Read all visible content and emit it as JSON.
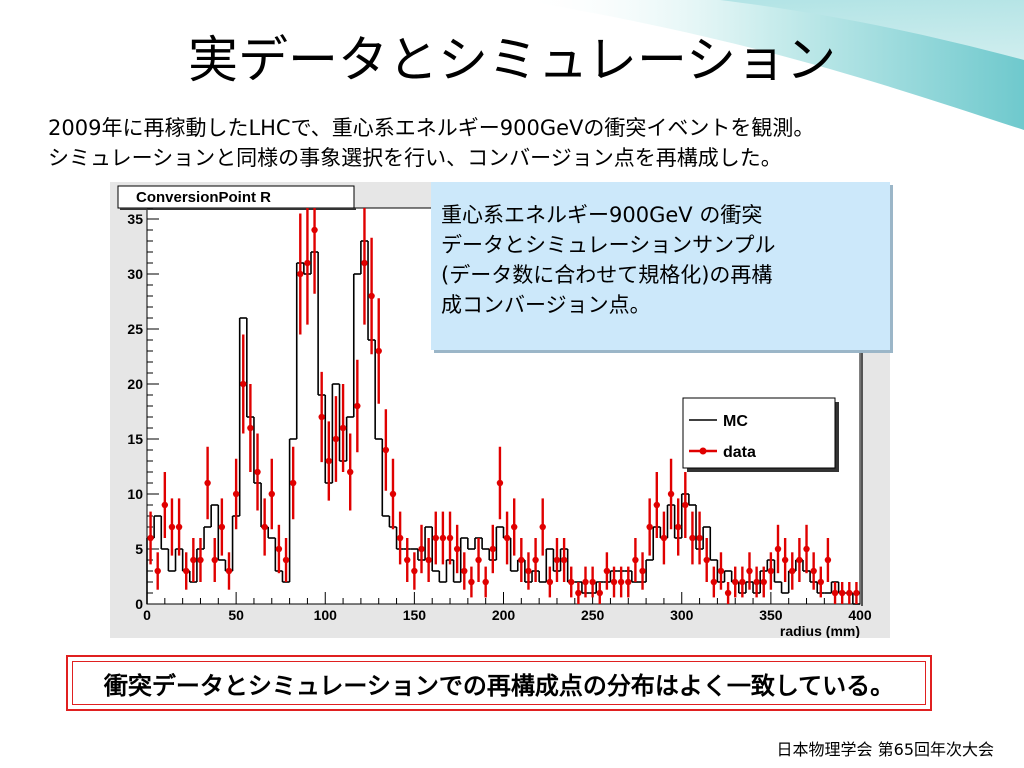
{
  "slide": {
    "title": "実データとシミュレーション",
    "intro_line1": "2009年に再稼動したLHCで、重心系エネルギー900GeVの衝突イベントを観測。",
    "intro_line2": "シミュレーションと同様の事象選択を行い、コンバージョン点を再構成した。",
    "callout_lines": [
      "重心系エネルギー900GeV の衝突",
      "データとシミュレーションサンプル",
      "(データ数に合わせて規格化)の再構",
      "成コンバージョン点。"
    ],
    "conclusion": "衝突データとシミュレーションでの再構成点の分布はよく一致している。",
    "footer": "日本物理学会 第65回年次大会"
  },
  "colors": {
    "data_marker": "#e00000",
    "mc_line": "#000000",
    "plot_frame_bg": "#e6e6e6",
    "callout_bg": "#cce8fa",
    "conclusion_border": "#e02020"
  },
  "chart_data": {
    "type": "line",
    "title": "ConversionPoint R",
    "xlabel": "radius (mm)",
    "ylabel": "",
    "xlim": [
      0,
      400
    ],
    "ylim": [
      0,
      36
    ],
    "xticks": [
      0,
      50,
      100,
      150,
      200,
      250,
      300,
      350,
      400
    ],
    "yticks": [
      0,
      5,
      10,
      15,
      20,
      25,
      30,
      35
    ],
    "bin_width": 4,
    "legend": [
      "MC",
      "data"
    ],
    "legend_position": "right",
    "series": [
      {
        "name": "MC",
        "style": "histogram",
        "x": [
          0,
          4,
          8,
          12,
          16,
          20,
          24,
          28,
          32,
          36,
          40,
          44,
          48,
          52,
          56,
          60,
          64,
          68,
          72,
          76,
          80,
          84,
          88,
          92,
          96,
          100,
          104,
          108,
          112,
          116,
          120,
          124,
          128,
          132,
          136,
          140,
          144,
          148,
          152,
          156,
          160,
          164,
          168,
          172,
          176,
          180,
          184,
          188,
          192,
          196,
          200,
          204,
          208,
          212,
          216,
          220,
          224,
          228,
          232,
          236,
          240,
          244,
          248,
          252,
          256,
          260,
          264,
          268,
          272,
          276,
          280,
          284,
          288,
          292,
          296,
          300,
          304,
          308,
          312,
          316,
          320,
          324,
          328,
          332,
          336,
          340,
          344,
          348,
          352,
          356,
          360,
          364,
          368,
          372,
          376,
          380,
          384,
          388,
          392,
          396
        ],
        "values": [
          6,
          8,
          5,
          3,
          5,
          3,
          2,
          5,
          7,
          9,
          4,
          3,
          8,
          26,
          17,
          11,
          7,
          6,
          3,
          2,
          15,
          31,
          30,
          32,
          19,
          11,
          20,
          13,
          17,
          30,
          33,
          24,
          15,
          8,
          7,
          5,
          5,
          5,
          4,
          7,
          3,
          2,
          4,
          2,
          6,
          5,
          6,
          5,
          4,
          7,
          6,
          3,
          4,
          2,
          3,
          2,
          5,
          3,
          5,
          2,
          2,
          1,
          1,
          2,
          2,
          3,
          3,
          3,
          2,
          2,
          4,
          7,
          6,
          9,
          6,
          10,
          9,
          5,
          7,
          4,
          2,
          3,
          2,
          1,
          2,
          1,
          3,
          4,
          2,
          1,
          3,
          4,
          3,
          2,
          1,
          1,
          2,
          1,
          1,
          0
        ]
      },
      {
        "name": "data",
        "style": "points",
        "x": [
          2,
          6,
          10,
          14,
          18,
          22,
          26,
          30,
          34,
          38,
          42,
          46,
          50,
          54,
          58,
          62,
          66,
          70,
          74,
          78,
          82,
          86,
          90,
          94,
          98,
          102,
          106,
          110,
          114,
          118,
          122,
          126,
          130,
          134,
          138,
          142,
          146,
          150,
          154,
          158,
          162,
          166,
          170,
          174,
          178,
          182,
          186,
          190,
          194,
          198,
          202,
          206,
          210,
          214,
          218,
          222,
          226,
          230,
          234,
          238,
          242,
          246,
          250,
          254,
          258,
          262,
          266,
          270,
          274,
          278,
          282,
          286,
          290,
          294,
          298,
          302,
          306,
          310,
          314,
          318,
          322,
          326,
          330,
          334,
          338,
          342,
          346,
          350,
          354,
          358,
          362,
          366,
          370,
          374,
          378,
          382,
          386,
          390,
          394,
          398
        ],
        "values": [
          6,
          3,
          9,
          7,
          7,
          3,
          4,
          4,
          11,
          4,
          7,
          3,
          10,
          20,
          16,
          12,
          7,
          10,
          5,
          4,
          11,
          30,
          31,
          34,
          17,
          13,
          15,
          16,
          12,
          18,
          31,
          28,
          23,
          14,
          10,
          6,
          4,
          3,
          5,
          4,
          6,
          6,
          6,
          5,
          3,
          2,
          4,
          2,
          5,
          11,
          6,
          7,
          4,
          3,
          4,
          7,
          2,
          4,
          4,
          2,
          1,
          2,
          2,
          1,
          3,
          2,
          2,
          2,
          4,
          3,
          7,
          9,
          6,
          10,
          7,
          9,
          6,
          6,
          4,
          2,
          3,
          1,
          2,
          2,
          3,
          2,
          2,
          3,
          5,
          4,
          3,
          4,
          5,
          3,
          2,
          4,
          1,
          1,
          1,
          1
        ],
        "errors": [
          2.4,
          1.7,
          3.0,
          2.6,
          2.6,
          1.7,
          2.0,
          2.0,
          3.3,
          2.0,
          2.6,
          1.7,
          3.2,
          4.5,
          4.0,
          3.5,
          2.6,
          3.2,
          2.2,
          2.0,
          3.3,
          5.5,
          5.6,
          5.8,
          4.1,
          3.6,
          3.9,
          4.0,
          3.5,
          4.2,
          5.6,
          5.3,
          4.8,
          3.7,
          3.2,
          2.4,
          2.0,
          1.7,
          2.2,
          2.0,
          2.4,
          2.4,
          2.4,
          2.2,
          1.7,
          1.4,
          2.0,
          1.4,
          2.2,
          3.3,
          2.4,
          2.6,
          2.0,
          1.7,
          2.0,
          2.6,
          1.4,
          2.0,
          2.0,
          1.4,
          1.0,
          1.4,
          1.4,
          1.0,
          1.7,
          1.4,
          1.4,
          1.4,
          2.0,
          1.7,
          2.6,
          3.0,
          2.4,
          3.2,
          2.6,
          3.0,
          2.4,
          2.4,
          2.0,
          1.4,
          1.7,
          1.0,
          1.4,
          1.4,
          1.7,
          1.4,
          1.4,
          1.7,
          2.2,
          2.0,
          1.7,
          2.0,
          2.2,
          1.7,
          1.4,
          2.0,
          1.0,
          1.0,
          1.0,
          1.0
        ]
      }
    ]
  }
}
